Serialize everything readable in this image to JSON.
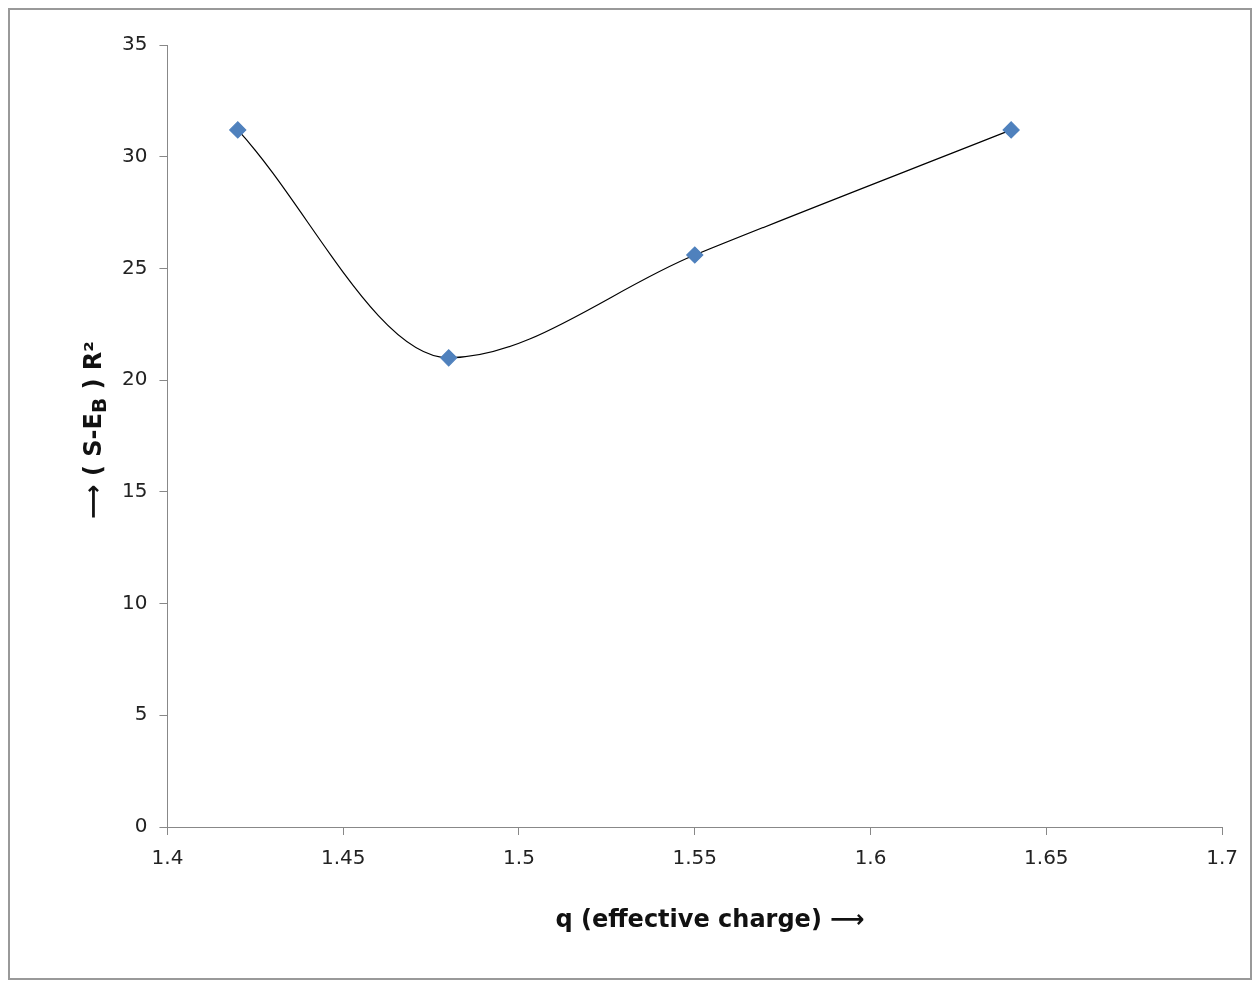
{
  "chart_data": {
    "type": "line",
    "xlabel": "q (effective charge) ⟶",
    "ylabel": "⟶   ( S-E$_{B}$ ) R²",
    "x": [
      1.42,
      1.48,
      1.55,
      1.64
    ],
    "series": [
      {
        "color": "#4f81bd",
        "values": [
          31.2,
          21.0,
          25.6,
          31.2
        ]
      }
    ],
    "xlim": [
      1.4,
      1.7
    ],
    "xticks": [
      1.4,
      1.45,
      1.5,
      1.55,
      1.6,
      1.65,
      1.7
    ],
    "ylim": [
      0,
      35
    ],
    "yticks": [
      0,
      5,
      10,
      15,
      20,
      25,
      30,
      35
    ],
    "grid": false,
    "legend": false,
    "marker": "diamond",
    "line_style": "solid"
  }
}
